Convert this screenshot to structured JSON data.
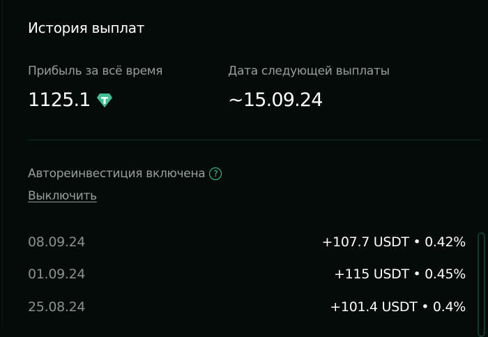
{
  "title": "История выплат",
  "stats": {
    "profit_label": "Прибыль за всё время",
    "profit_value": "1125.1",
    "profit_icon": "tether-icon",
    "next_label": "Дата следующей выплаты",
    "next_value": "~15.09.24"
  },
  "reinvest": {
    "label": "Автореинвестиция включена",
    "help_icon": "question-circle-icon",
    "help_glyph": "?",
    "disable_label": "Выключить"
  },
  "payouts": [
    {
      "date": "08.09.24",
      "amount": "+107.7 USDT • 0.42%"
    },
    {
      "date": "01.09.24",
      "amount": "+115 USDT • 0.45%"
    },
    {
      "date": "25.08.24",
      "amount": "+101.4 USDT • 0.4%"
    }
  ],
  "colors": {
    "accent": "#2fd49a",
    "background": "#040b09"
  }
}
